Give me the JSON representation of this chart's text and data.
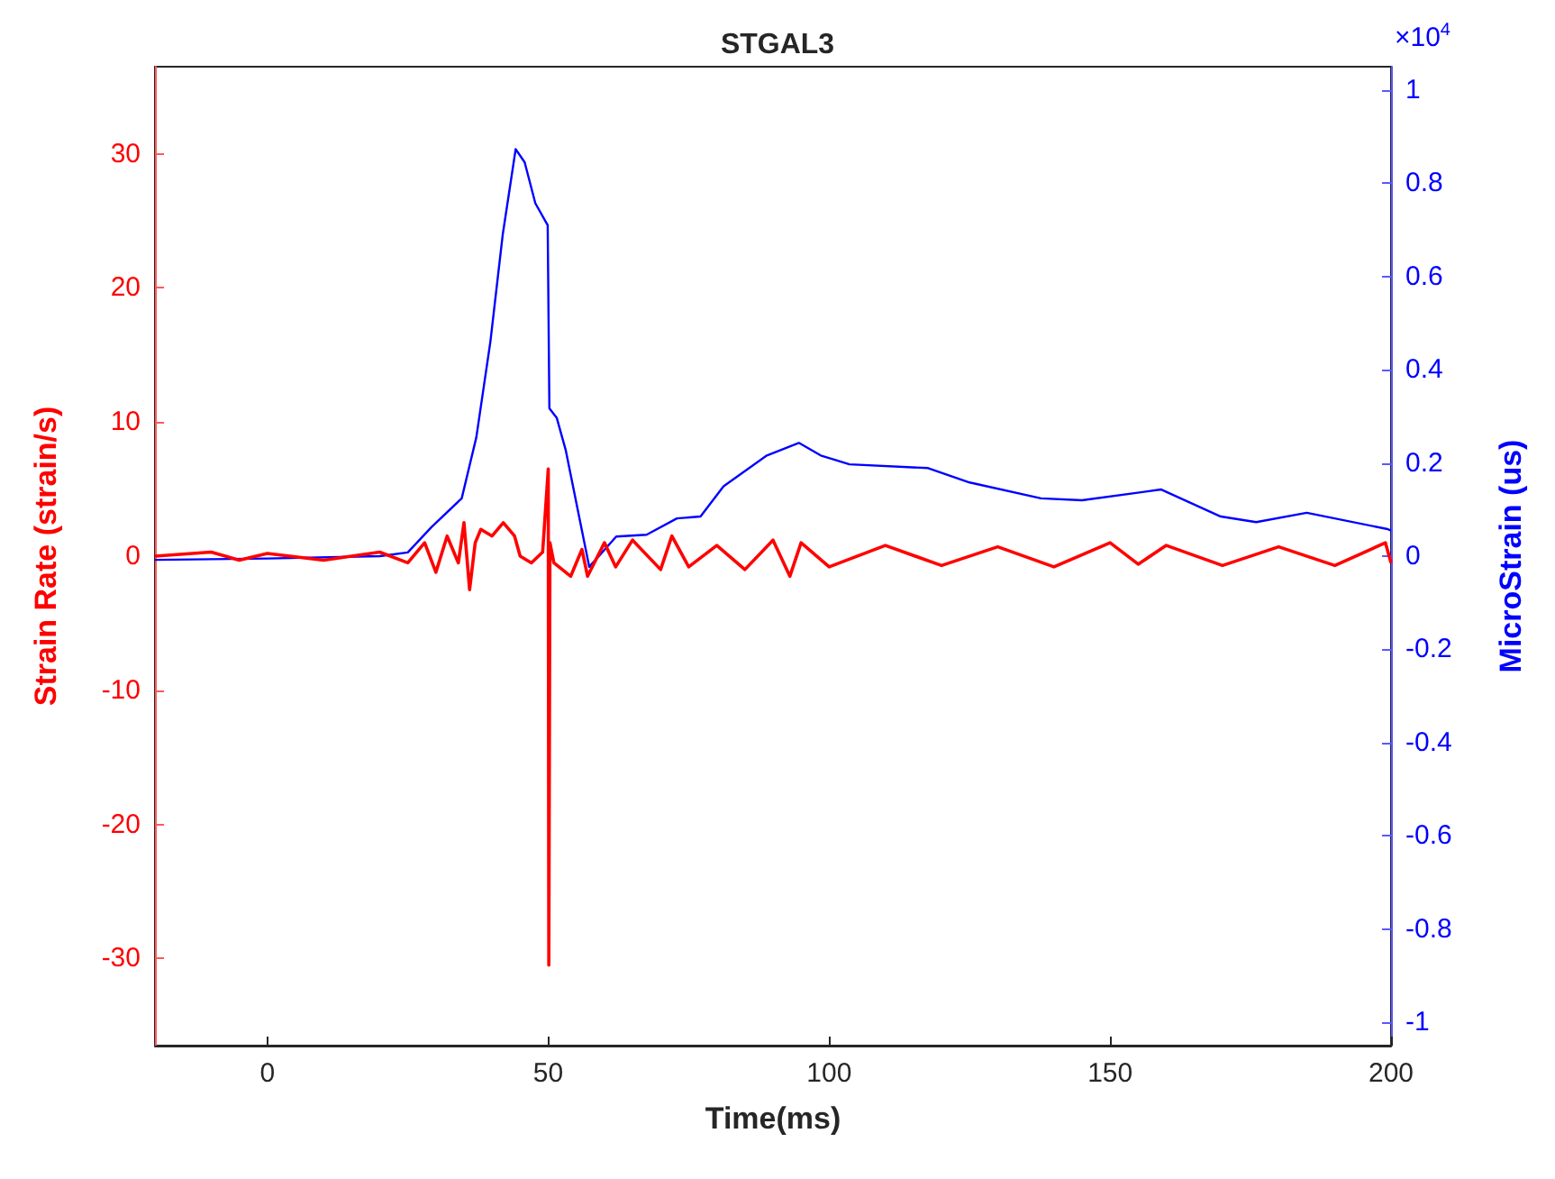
{
  "chart_data": {
    "type": "line",
    "title": "STGAL3",
    "xlabel": "Time(ms)",
    "ylabel": "Strain Rate (strain/s)",
    "y2label": "MicroStrain (us)",
    "annotations": [
      "×10$^{4}$"
    ],
    "xlim": [
      -20,
      200
    ],
    "xticks": [
      0,
      50,
      100,
      150,
      200
    ],
    "ylim": [
      -36.5,
      36.5
    ],
    "yticks": [
      -30,
      -20,
      -10,
      0,
      10,
      20,
      30
    ],
    "y2lim": [
      -1.05,
      1.05
    ],
    "y2ticks": [
      -1,
      -0.8,
      -0.6,
      -0.4,
      -0.2,
      0,
      0.2,
      0.4,
      0.6,
      0.8,
      1
    ],
    "grid": false,
    "series": [
      {
        "color": "#0000ff",
        "axis": "y2",
        "x": [
          -20,
          0,
          20,
          25,
          29.2,
          34.6,
          37.2,
          39.7,
          41.9,
          44.2,
          45.8,
          47.7,
          49.9,
          50.2,
          51.5,
          53.1,
          57.3,
          62.1,
          67.5,
          72.9,
          77.1,
          81.2,
          88.9,
          94.6,
          98.5,
          103.6,
          117.6,
          125,
          137.7,
          145,
          159.1,
          169.7,
          176,
          185,
          199.4,
          200
        ],
        "values": [
          -0.008,
          -0.005,
          0,
          0.008,
          0.062,
          0.124,
          0.255,
          0.46,
          0.69,
          0.873,
          0.845,
          0.757,
          0.71,
          0.317,
          0.297,
          0.228,
          -0.023,
          0.042,
          0.046,
          0.081,
          0.085,
          0.15,
          0.216,
          0.243,
          0.216,
          0.197,
          0.189,
          0.158,
          0.124,
          0.12,
          0.143,
          0.085,
          0.073,
          0.093,
          0.058,
          0.055
        ]
      },
      {
        "color": "#ff0000",
        "axis": "y",
        "x": [
          -20,
          -10,
          -5,
          0,
          10,
          20,
          25,
          28,
          30,
          32,
          34,
          35,
          36,
          37,
          38,
          40,
          42,
          44,
          45,
          47,
          49,
          50,
          50.1,
          50.3,
          51,
          54,
          56,
          57,
          60,
          62,
          65,
          70,
          72,
          75,
          80,
          85,
          90,
          93,
          95,
          100,
          110,
          120,
          130,
          140,
          150,
          155,
          160,
          170,
          180,
          190,
          199,
          200
        ],
        "values": [
          0,
          0.3,
          -0.3,
          0.2,
          -0.3,
          0.3,
          -0.5,
          1,
          -1.2,
          1.5,
          -0.5,
          2.5,
          -2.5,
          1,
          2,
          1.5,
          2.5,
          1.5,
          0,
          -0.5,
          0.3,
          6.5,
          -30.5,
          1,
          -0.5,
          -1.5,
          0.5,
          -1.5,
          1,
          -0.8,
          1.2,
          -1,
          1.5,
          -0.8,
          0.8,
          -1,
          1.2,
          -1.5,
          1,
          -0.8,
          0.8,
          -0.7,
          0.7,
          -0.8,
          1,
          -0.6,
          0.8,
          -0.7,
          0.7,
          -0.7,
          1,
          -0.5
        ]
      }
    ]
  }
}
